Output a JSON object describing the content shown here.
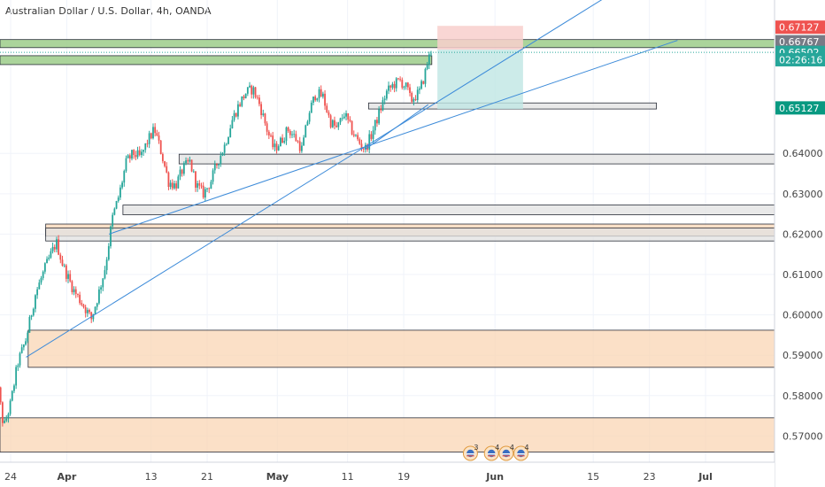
{
  "title": "Australian Dollar / U.S. Dollar, 4h, OANDA",
  "chart_data": {
    "type": "candlestick",
    "symbol": "AUDUSD",
    "timeframe": "4h",
    "source": "OANDA",
    "ylim": [
      0.5635,
      0.678
    ],
    "x_ticks": [
      {
        "label": "24",
        "day": 0,
        "bold": false
      },
      {
        "label": "Apr",
        "day": 8,
        "bold": true
      },
      {
        "label": "13",
        "day": 20,
        "bold": false
      },
      {
        "label": "21",
        "day": 28,
        "bold": false
      },
      {
        "label": "May",
        "day": 38,
        "bold": true
      },
      {
        "label": "11",
        "day": 48,
        "bold": false
      },
      {
        "label": "19",
        "day": 56,
        "bold": false
      },
      {
        "label": "Jun",
        "day": 69,
        "bold": true
      },
      {
        "label": "15",
        "day": 83,
        "bold": false
      },
      {
        "label": "23",
        "day": 91,
        "bold": false
      },
      {
        "label": "Jul",
        "day": 99,
        "bold": true
      }
    ],
    "y_ticks": [
      {
        "label": "0.57000",
        "value": 0.57
      },
      {
        "label": "0.58000",
        "value": 0.58
      },
      {
        "label": "0.59000",
        "value": 0.59
      },
      {
        "label": "0.60000",
        "value": 0.6
      },
      {
        "label": "0.61000",
        "value": 0.61
      },
      {
        "label": "0.62000",
        "value": 0.62
      },
      {
        "label": "0.63000",
        "value": 0.63
      },
      {
        "label": "0.64000",
        "value": 0.64
      }
    ],
    "price_path": [
      [
        -2.8,
        0.595
      ],
      [
        -2.0,
        0.585
      ],
      [
        -1.0,
        0.572
      ],
      [
        0.0,
        0.578
      ],
      [
        1.0,
        0.588
      ],
      [
        2.2,
        0.594
      ],
      [
        3.5,
        0.605
      ],
      [
        5.0,
        0.612
      ],
      [
        6.5,
        0.618
      ],
      [
        7.5,
        0.612
      ],
      [
        9.0,
        0.606
      ],
      [
        10.5,
        0.602
      ],
      [
        11.5,
        0.599
      ],
      [
        12.5,
        0.605
      ],
      [
        13.5,
        0.612
      ],
      [
        14.5,
        0.624
      ],
      [
        15.5,
        0.63
      ],
      [
        16.5,
        0.638
      ],
      [
        17.5,
        0.64
      ],
      [
        18.5,
        0.639
      ],
      [
        19.5,
        0.643
      ],
      [
        20.5,
        0.646
      ],
      [
        21.5,
        0.64
      ],
      [
        22.5,
        0.633
      ],
      [
        23.5,
        0.632
      ],
      [
        24.5,
        0.636
      ],
      [
        25.5,
        0.638
      ],
      [
        26.5,
        0.632
      ],
      [
        27.5,
        0.63
      ],
      [
        28.5,
        0.633
      ],
      [
        29.5,
        0.638
      ],
      [
        30.5,
        0.642
      ],
      [
        31.5,
        0.648
      ],
      [
        32.5,
        0.652
      ],
      [
        33.5,
        0.655
      ],
      [
        34.5,
        0.656
      ],
      [
        35.5,
        0.652
      ],
      [
        36.5,
        0.646
      ],
      [
        37.5,
        0.641
      ],
      [
        38.5,
        0.643
      ],
      [
        39.5,
        0.646
      ],
      [
        40.5,
        0.644
      ],
      [
        41.5,
        0.641
      ],
      [
        42.5,
        0.65
      ],
      [
        43.5,
        0.655
      ],
      [
        44.5,
        0.654
      ],
      [
        45.5,
        0.648
      ],
      [
        46.5,
        0.646
      ],
      [
        47.5,
        0.65
      ],
      [
        48.5,
        0.646
      ],
      [
        49.5,
        0.643
      ],
      [
        50.5,
        0.641
      ],
      [
        51.5,
        0.645
      ],
      [
        52.5,
        0.65
      ],
      [
        53.5,
        0.655
      ],
      [
        54.5,
        0.657
      ],
      [
        55.5,
        0.658
      ],
      [
        56.5,
        0.656
      ],
      [
        57.0,
        0.653
      ],
      [
        57.5,
        0.654
      ],
      [
        58.2,
        0.655
      ],
      [
        59.0,
        0.6595
      ],
      [
        59.5,
        0.6635
      ],
      [
        60.0,
        0.665
      ]
    ],
    "zones": [
      {
        "kind": "supply",
        "day_start": -20,
        "day_end": 200,
        "high": 0.6682,
        "low": 0.6662,
        "color": "#9ccc8a"
      },
      {
        "kind": "supply",
        "day_start": -20,
        "day_end": 60,
        "high": 0.6642,
        "low": 0.662,
        "color": "#9ccc8a"
      },
      {
        "kind": "level",
        "day_start": 51,
        "day_end": 92,
        "high": 0.6525,
        "low": 0.651,
        "color": "#e2e2e2"
      },
      {
        "kind": "level",
        "day_start": 24,
        "day_end": 200,
        "high": 0.6398,
        "low": 0.6374,
        "color": "#e2e2e2"
      },
      {
        "kind": "level",
        "day_start": 16,
        "day_end": 200,
        "high": 0.6272,
        "low": 0.6248,
        "color": "#e2e2e2"
      },
      {
        "kind": "demand",
        "day_start": 5,
        "day_end": 200,
        "high": 0.6225,
        "low": 0.6195,
        "color": "#fad6b4"
      },
      {
        "kind": "level",
        "day_start": 5,
        "day_end": 200,
        "high": 0.6215,
        "low": 0.6183,
        "color": "#e2e2e2"
      },
      {
        "kind": "demand",
        "day_start": 2.5,
        "day_end": 200,
        "high": 0.5962,
        "low": 0.587,
        "color": "#fad6b4"
      },
      {
        "kind": "demand",
        "day_start": -20,
        "day_end": 200,
        "high": 0.5745,
        "low": 0.566,
        "color": "#fad6b4"
      }
    ],
    "position": {
      "type": "short",
      "day_start": 60.8,
      "day_end": 73,
      "entry": 0.6657,
      "stop": 0.6716,
      "target": 0.651
    },
    "trendlines": [
      {
        "from": [
          2.2,
          0.5895
        ],
        "to": [
          86,
          0.68
        ]
      },
      {
        "from": [
          14,
          0.62
        ],
        "to": [
          95,
          0.668
        ]
      },
      {
        "from": [
          50.5,
          0.641
        ],
        "to": [
          59.5,
          0.6521
        ]
      }
    ],
    "price_labels": [
      {
        "label": "0.67127",
        "value": 0.67127,
        "color": "#ef5350"
      },
      {
        "label": "0.66767",
        "value": 0.66767,
        "color": "#787b86"
      },
      {
        "label": "0.66502",
        "value": 0.66502,
        "color": "#26a69a"
      },
      {
        "label": "02:26:16",
        "value": 0.6632,
        "color": "#26a69a"
      },
      {
        "label": "0.65127",
        "value": 0.65127,
        "color": "#089981"
      }
    ],
    "events": [
      {
        "count": "3",
        "day": 65.5
      },
      {
        "count": "4",
        "day": 68.5
      },
      {
        "count": "4",
        "day": 70.6
      },
      {
        "count": "4",
        "day": 72.7
      }
    ]
  },
  "colors": {
    "up": "#26a69a",
    "down": "#ef5350",
    "grid": "#f0f3fa",
    "trend": "#3d8bd9",
    "target_fill": "#bfe6e4",
    "stop_fill": "#f8cfcd"
  }
}
